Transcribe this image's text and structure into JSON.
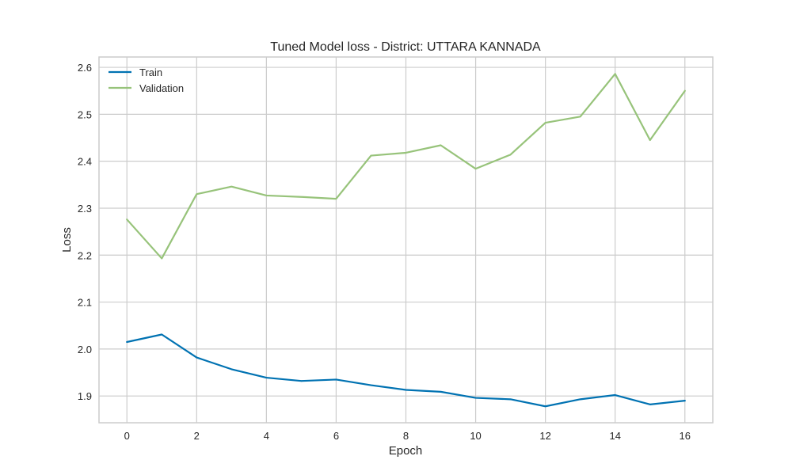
{
  "chart_data": {
    "type": "line",
    "title": "Tuned Model loss - District: UTTARA KANNADA",
    "xlabel": "Epoch",
    "ylabel": "Loss",
    "xlim": [
      -0.8,
      16.8
    ],
    "ylim": [
      1.843,
      2.622
    ],
    "xticks": [
      0,
      2,
      4,
      6,
      8,
      10,
      12,
      14,
      16
    ],
    "yticks": [
      1.9,
      2.0,
      2.1,
      2.2,
      2.3,
      2.4,
      2.5,
      2.6
    ],
    "ytick_labels": [
      "1.9",
      "2.0",
      "2.1",
      "2.2",
      "2.3",
      "2.4",
      "2.5",
      "2.6"
    ],
    "grid": true,
    "legend_position": "top-left",
    "x": [
      0,
      1,
      2,
      3,
      4,
      5,
      6,
      7,
      8,
      9,
      10,
      11,
      12,
      13,
      14,
      15,
      16
    ],
    "series": [
      {
        "name": "Train",
        "color": "#0072B2",
        "values": [
          2.015,
          2.031,
          1.982,
          1.957,
          1.939,
          1.932,
          1.935,
          1.923,
          1.913,
          1.909,
          1.896,
          1.893,
          1.878,
          1.893,
          1.902,
          1.882,
          1.89
        ]
      },
      {
        "name": "Validation",
        "color": "#97C37A",
        "values": [
          2.276,
          2.193,
          2.33,
          2.346,
          2.327,
          2.324,
          2.32,
          2.412,
          2.418,
          2.434,
          2.384,
          2.414,
          2.482,
          2.495,
          2.586,
          2.445,
          2.55
        ]
      }
    ]
  }
}
